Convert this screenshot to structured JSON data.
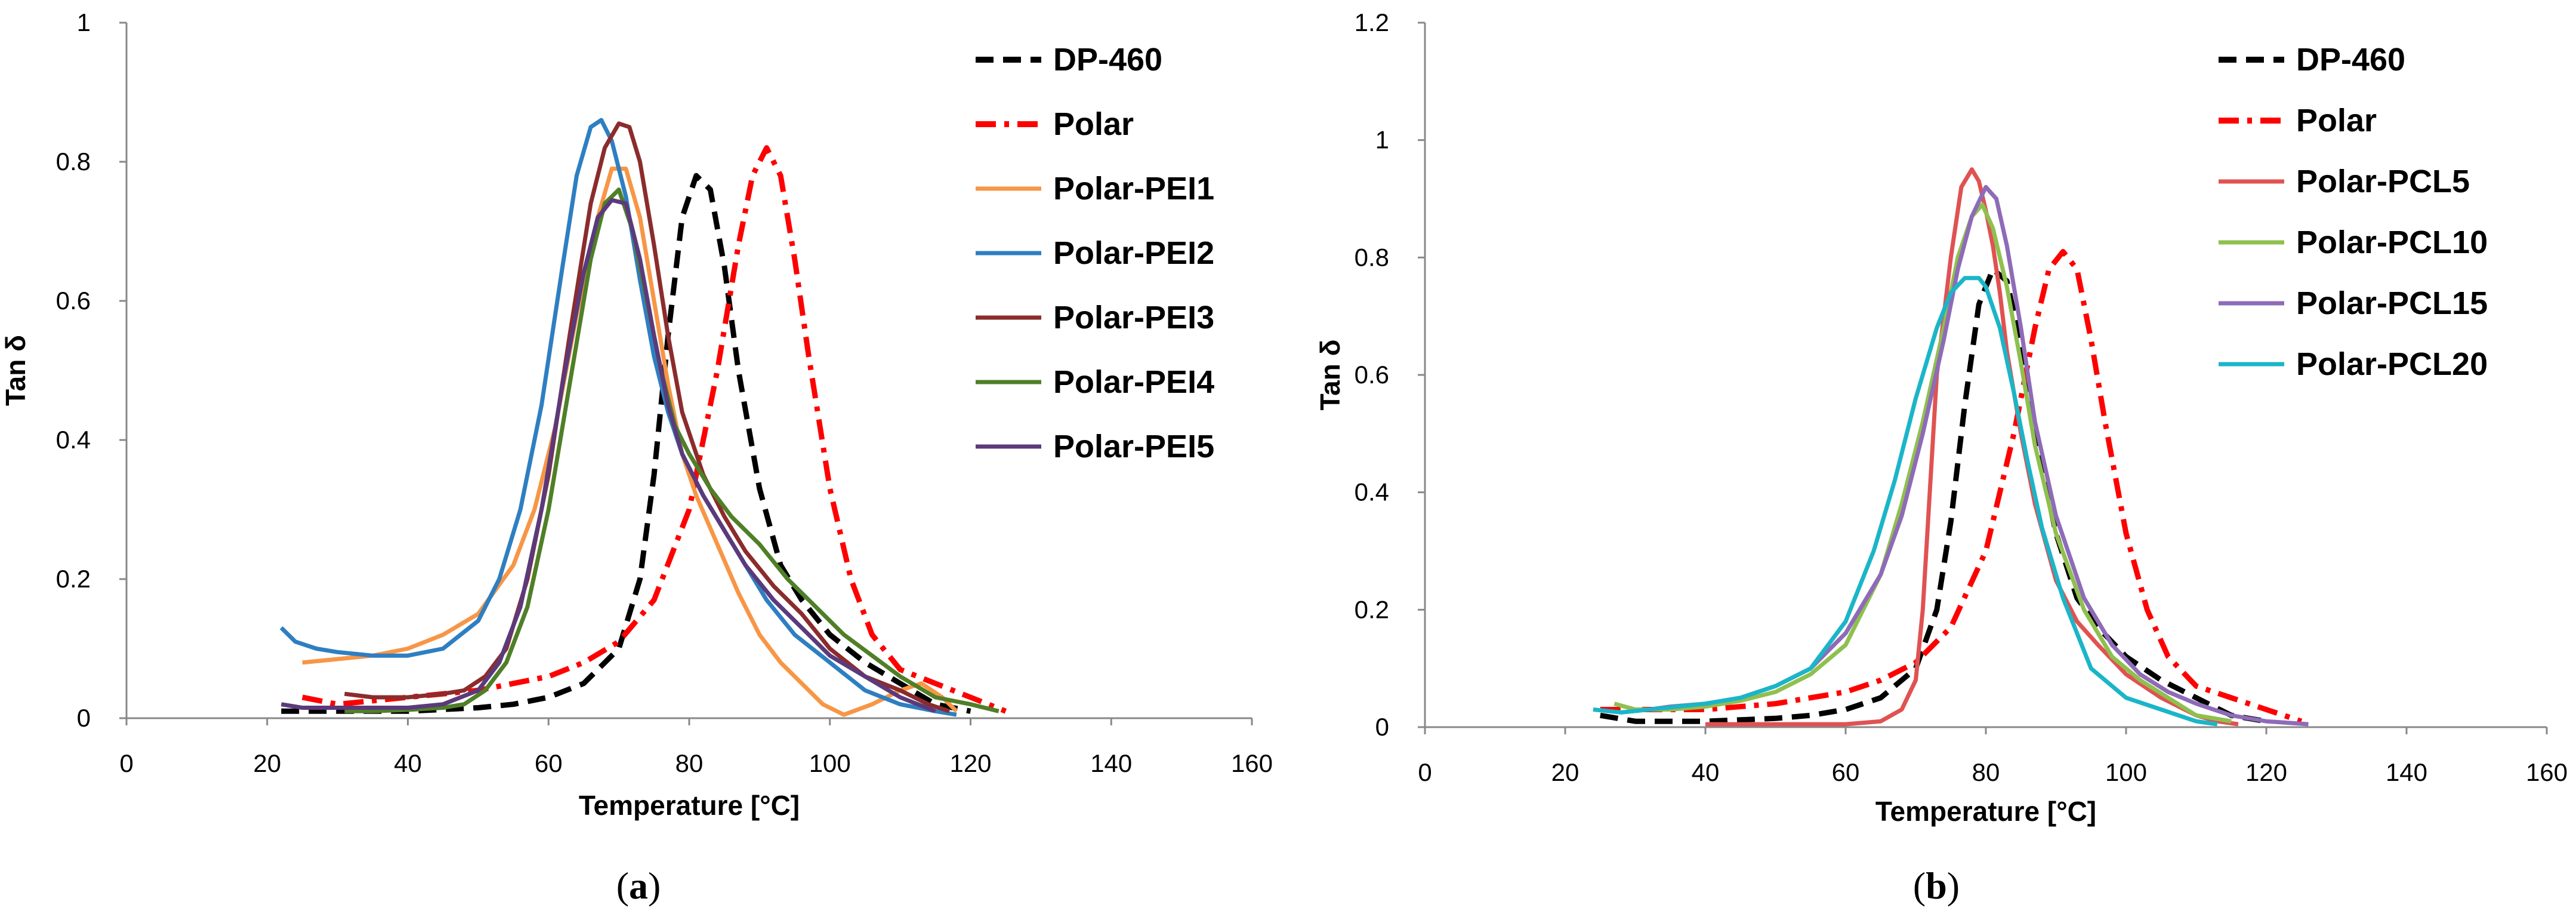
{
  "chart_data": [
    {
      "type": "line",
      "panel_label": "a",
      "xlabel": "Temperature [°C]",
      "ylabel": "Tan  δ",
      "xlim": [
        0,
        160
      ],
      "ylim": [
        0,
        1
      ],
      "xticks": [
        "0",
        "20",
        "40",
        "60",
        "80",
        "100",
        "120",
        "140",
        "160"
      ],
      "yticks": [
        "0",
        "0.2",
        "0.4",
        "0.6",
        "0.8",
        "1"
      ],
      "grid": false,
      "legend_position": "top-right",
      "series": [
        {
          "name": "DP-460",
          "color": "#000000",
          "style": "dashed",
          "x": [
            22,
            30,
            40,
            50,
            55,
            60,
            65,
            70,
            73,
            75,
            77,
            79,
            81,
            83,
            85,
            87,
            90,
            93,
            96,
            100,
            105,
            110,
            115,
            120
          ],
          "y": [
            0.01,
            0.01,
            0.01,
            0.015,
            0.02,
            0.03,
            0.05,
            0.1,
            0.2,
            0.35,
            0.55,
            0.72,
            0.78,
            0.76,
            0.65,
            0.5,
            0.33,
            0.22,
            0.17,
            0.12,
            0.08,
            0.05,
            0.02,
            0.01
          ]
        },
        {
          "name": "Polar",
          "color": "#ff0000",
          "style": "dashdot",
          "x": [
            25,
            30,
            40,
            50,
            55,
            60,
            65,
            70,
            75,
            80,
            84,
            87,
            89,
            91,
            93,
            95,
            97,
            100,
            103,
            106,
            110,
            115,
            120,
            125
          ],
          "y": [
            0.03,
            0.02,
            0.03,
            0.04,
            0.05,
            0.06,
            0.08,
            0.11,
            0.17,
            0.3,
            0.5,
            0.68,
            0.78,
            0.82,
            0.78,
            0.66,
            0.52,
            0.33,
            0.2,
            0.12,
            0.07,
            0.05,
            0.03,
            0.01
          ]
        },
        {
          "name": "Polar-PEI1",
          "color": "#f79646",
          "style": "solid",
          "x": [
            25,
            30,
            35,
            40,
            45,
            50,
            55,
            58,
            61,
            64,
            67,
            69,
            71,
            73,
            75,
            77,
            79,
            81,
            84,
            87,
            90,
            93,
            96,
            99,
            102,
            106,
            110,
            113,
            116,
            118
          ],
          "y": [
            0.08,
            0.085,
            0.09,
            0.1,
            0.12,
            0.15,
            0.22,
            0.3,
            0.42,
            0.58,
            0.72,
            0.79,
            0.79,
            0.72,
            0.6,
            0.48,
            0.38,
            0.32,
            0.25,
            0.18,
            0.12,
            0.08,
            0.05,
            0.02,
            0.005,
            0.02,
            0.04,
            0.05,
            0.03,
            0.01
          ]
        },
        {
          "name": "Polar-PEI2",
          "color": "#2e7fc1",
          "style": "solid",
          "x": [
            22,
            24,
            27,
            30,
            35,
            40,
            45,
            50,
            53,
            56,
            59,
            62,
            64,
            66,
            67.5,
            69,
            71,
            73,
            75,
            77,
            79,
            82,
            85,
            88,
            91,
            95,
            100,
            105,
            110,
            115,
            118
          ],
          "y": [
            0.13,
            0.11,
            0.1,
            0.095,
            0.09,
            0.09,
            0.1,
            0.14,
            0.2,
            0.3,
            0.45,
            0.65,
            0.78,
            0.85,
            0.86,
            0.83,
            0.75,
            0.63,
            0.52,
            0.44,
            0.38,
            0.32,
            0.27,
            0.22,
            0.17,
            0.12,
            0.08,
            0.04,
            0.02,
            0.01,
            0.005
          ]
        },
        {
          "name": "Polar-PEI3",
          "color": "#8b2c2c",
          "style": "solid",
          "x": [
            31,
            35,
            40,
            45,
            48,
            51,
            54,
            57,
            60,
            63,
            66,
            68,
            70,
            71.5,
            73,
            75,
            77,
            79,
            82,
            85,
            88,
            92,
            96,
            100,
            105,
            110,
            114,
            117
          ],
          "y": [
            0.035,
            0.03,
            0.03,
            0.035,
            0.04,
            0.06,
            0.1,
            0.2,
            0.35,
            0.55,
            0.74,
            0.82,
            0.855,
            0.85,
            0.8,
            0.68,
            0.55,
            0.44,
            0.35,
            0.29,
            0.24,
            0.19,
            0.15,
            0.1,
            0.06,
            0.04,
            0.02,
            0.01
          ]
        },
        {
          "name": "Polar-PEI4",
          "color": "#4f7f27",
          "style": "solid",
          "x": [
            31,
            35,
            40,
            45,
            48,
            51,
            54,
            57,
            60,
            63,
            66,
            68,
            70,
            72,
            74,
            76,
            78,
            80,
            83,
            86,
            90,
            94,
            98,
            102,
            106,
            110,
            115,
            120,
            124
          ],
          "y": [
            0.01,
            0.01,
            0.012,
            0.015,
            0.02,
            0.04,
            0.08,
            0.16,
            0.3,
            0.48,
            0.66,
            0.74,
            0.76,
            0.7,
            0.6,
            0.5,
            0.42,
            0.38,
            0.33,
            0.29,
            0.25,
            0.2,
            0.16,
            0.12,
            0.09,
            0.06,
            0.03,
            0.02,
            0.01
          ]
        },
        {
          "name": "Polar-PEI5",
          "color": "#5b3a7b",
          "style": "solid",
          "x": [
            22,
            25,
            30,
            35,
            40,
            45,
            50,
            53,
            56,
            59,
            62,
            65,
            67,
            69,
            71,
            73,
            75,
            77,
            79,
            82,
            85,
            88,
            92,
            96,
            100,
            105,
            110,
            115
          ],
          "y": [
            0.02,
            0.015,
            0.015,
            0.015,
            0.015,
            0.02,
            0.04,
            0.08,
            0.16,
            0.3,
            0.48,
            0.64,
            0.72,
            0.745,
            0.74,
            0.66,
            0.55,
            0.45,
            0.38,
            0.32,
            0.27,
            0.22,
            0.17,
            0.13,
            0.09,
            0.06,
            0.03,
            0.01
          ]
        }
      ]
    },
    {
      "type": "line",
      "panel_label": "b",
      "xlabel": "Temperature [°C]",
      "ylabel": "Tan δ",
      "xlim": [
        0,
        160
      ],
      "ylim": [
        0,
        1.2
      ],
      "xticks": [
        "0",
        "20",
        "40",
        "60",
        "80",
        "100",
        "120",
        "140",
        "160"
      ],
      "yticks": [
        "0",
        "0.2",
        "0.4",
        "0.6",
        "0.8",
        "1",
        "1.2"
      ],
      "grid": false,
      "legend_position": "top-right",
      "series": [
        {
          "name": "DP-460",
          "color": "#000000",
          "style": "dashed",
          "x": [
            25,
            30,
            40,
            50,
            55,
            60,
            65,
            70,
            73,
            75,
            77,
            79,
            81,
            83,
            85,
            87,
            90,
            93,
            96,
            100,
            105,
            110,
            115,
            120
          ],
          "y": [
            0.02,
            0.01,
            0.01,
            0.015,
            0.02,
            0.03,
            0.05,
            0.1,
            0.2,
            0.35,
            0.55,
            0.72,
            0.78,
            0.76,
            0.65,
            0.5,
            0.33,
            0.22,
            0.17,
            0.12,
            0.08,
            0.05,
            0.02,
            0.01
          ]
        },
        {
          "name": "Polar",
          "color": "#ff0000",
          "style": "dashdot",
          "x": [
            25,
            30,
            40,
            50,
            55,
            60,
            65,
            70,
            75,
            80,
            84,
            87,
            89,
            91,
            93,
            95,
            97,
            100,
            103,
            106,
            110,
            115,
            120,
            125
          ],
          "y": [
            0.03,
            0.03,
            0.03,
            0.04,
            0.05,
            0.06,
            0.08,
            0.11,
            0.17,
            0.3,
            0.5,
            0.68,
            0.78,
            0.81,
            0.78,
            0.66,
            0.52,
            0.33,
            0.2,
            0.12,
            0.07,
            0.05,
            0.03,
            0.01
          ]
        },
        {
          "name": "Polar-PCL5",
          "color": "#e05252",
          "style": "solid",
          "x": [
            40,
            50,
            60,
            65,
            68,
            70,
            71,
            72,
            73,
            75,
            76.5,
            78,
            79,
            80,
            81,
            82,
            83,
            85,
            87,
            90,
            93,
            96,
            100,
            105,
            110,
            113,
            116
          ],
          "y": [
            0.005,
            0.005,
            0.005,
            0.01,
            0.03,
            0.08,
            0.2,
            0.4,
            0.6,
            0.8,
            0.92,
            0.95,
            0.93,
            0.88,
            0.82,
            0.74,
            0.64,
            0.5,
            0.38,
            0.25,
            0.18,
            0.14,
            0.09,
            0.05,
            0.02,
            0.01,
            0.005
          ]
        },
        {
          "name": "Polar-PCL10",
          "color": "#8fc04f",
          "style": "solid",
          "x": [
            27,
            30,
            35,
            40,
            45,
            50,
            55,
            60,
            65,
            68,
            71,
            74,
            76,
            78,
            79.5,
            81,
            83,
            85,
            87,
            90,
            94,
            98,
            102,
            106,
            110,
            115
          ],
          "y": [
            0.04,
            0.03,
            0.03,
            0.035,
            0.045,
            0.06,
            0.09,
            0.14,
            0.26,
            0.38,
            0.52,
            0.68,
            0.8,
            0.87,
            0.89,
            0.85,
            0.75,
            0.62,
            0.48,
            0.33,
            0.2,
            0.12,
            0.08,
            0.05,
            0.02,
            0.01
          ]
        },
        {
          "name": "Polar-PCL15",
          "color": "#8e6bb8",
          "style": "solid",
          "x": [
            32,
            35,
            40,
            45,
            50,
            55,
            60,
            65,
            68,
            71,
            74,
            76,
            78,
            80,
            81.5,
            83,
            85,
            87,
            90,
            94,
            98,
            102,
            106,
            110,
            115,
            120,
            126
          ],
          "y": [
            0.03,
            0.035,
            0.04,
            0.05,
            0.07,
            0.1,
            0.16,
            0.26,
            0.36,
            0.5,
            0.66,
            0.78,
            0.87,
            0.92,
            0.9,
            0.82,
            0.68,
            0.52,
            0.36,
            0.22,
            0.14,
            0.09,
            0.06,
            0.04,
            0.02,
            0.01,
            0.005
          ]
        },
        {
          "name": "Polar-PCL20",
          "color": "#1bb5c8",
          "style": "solid",
          "x": [
            24,
            28,
            32,
            36,
            40,
            45,
            50,
            55,
            60,
            64,
            67,
            70,
            73,
            75,
            77,
            79,
            80,
            82,
            84,
            86,
            88,
            91,
            95,
            100,
            105,
            110,
            113
          ],
          "y": [
            0.03,
            0.025,
            0.03,
            0.035,
            0.04,
            0.05,
            0.07,
            0.1,
            0.18,
            0.3,
            0.42,
            0.56,
            0.68,
            0.74,
            0.765,
            0.765,
            0.75,
            0.68,
            0.57,
            0.45,
            0.34,
            0.22,
            0.1,
            0.05,
            0.03,
            0.01,
            0.005
          ]
        }
      ]
    }
  ]
}
